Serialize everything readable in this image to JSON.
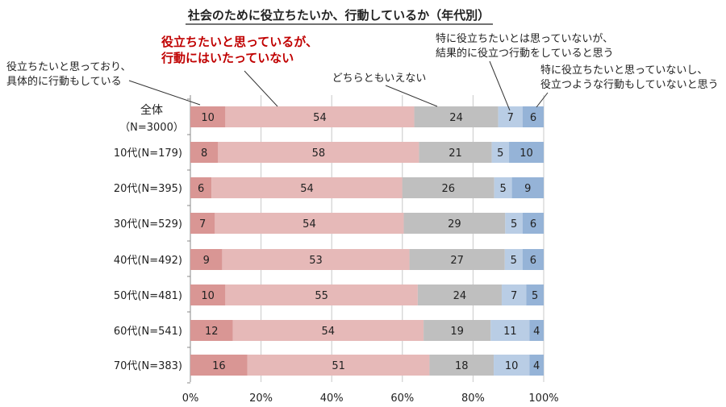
{
  "chart_data": {
    "type": "bar",
    "orientation": "horizontal",
    "stacked": true,
    "title": "社会のために役立ちたいか、行動しているか（年代別）",
    "categories": [
      "全体（N=3000）",
      "10代(N=179)",
      "20代(N=395)",
      "30代(N=529)",
      "40代(N=492)",
      "50代(N=481)",
      "60代(N=541)",
      "70代(N=383)"
    ],
    "category_lines": [
      [
        "全体",
        "（N=3000）"
      ],
      [
        "10代(N=179)"
      ],
      [
        "20代(N=395)"
      ],
      [
        "30代(N=529)"
      ],
      [
        "40代(N=492)"
      ],
      [
        "50代(N=481)"
      ],
      [
        "60代(N=541)"
      ],
      [
        "70代(N=383)"
      ]
    ],
    "series": [
      {
        "name": "役立ちたいと思っており、具体的に行動もしている",
        "lines": [
          "役立ちたいと思っており、",
          "具体的に行動もしている"
        ],
        "color": "#d99694",
        "values": [
          10,
          8,
          6,
          7,
          9,
          10,
          12,
          16
        ]
      },
      {
        "name": "役立ちたいと思っているが、行動にはいたっていない",
        "lines": [
          "役立ちたいと思っているが、",
          "行動にはいたっていない"
        ],
        "color": "#e6b9b8",
        "highlight_color": "#c00000",
        "values": [
          54,
          58,
          54,
          54,
          53,
          55,
          54,
          51
        ]
      },
      {
        "name": "どちらともいえない",
        "lines": [
          "どちらともいえない"
        ],
        "color": "#bfbfbf",
        "values": [
          24,
          21,
          26,
          29,
          27,
          24,
          19,
          18
        ]
      },
      {
        "name": "特に役立ちたいとは思っていないが、結果的に役立つ行動をしていると思う",
        "lines": [
          "特に役立ちたいとは思っていないが、",
          "結果的に役立つ行動をしていると思う"
        ],
        "color": "#b9cde5",
        "values": [
          7,
          5,
          5,
          5,
          5,
          7,
          11,
          10
        ]
      },
      {
        "name": "特に役立ちたいと思っていないし、役立つような行動もしていないと思う",
        "lines": [
          "特に役立ちたいと思っていないし、",
          "役立つような行動もしていないと思う"
        ],
        "color": "#95b3d7",
        "values": [
          6,
          10,
          9,
          6,
          6,
          5,
          4,
          4
        ]
      }
    ],
    "xlim": [
      0,
      100
    ],
    "xticks": [
      "0%",
      "20%",
      "40%",
      "60%",
      "80%",
      "100%"
    ],
    "xlabel": "",
    "ylabel": "",
    "grid": true,
    "legend": "callout labels above first bar"
  }
}
